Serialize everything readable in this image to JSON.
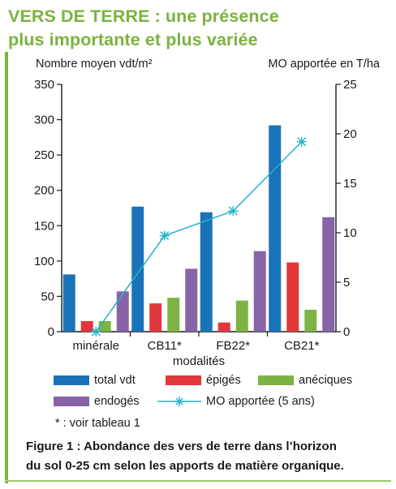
{
  "header": {
    "title_line1": "VERS DE TERRE : une présence",
    "title_line2": "plus importante et plus variée"
  },
  "chart_data": {
    "type": "bar",
    "categories": [
      "minérale",
      "CB11*",
      "FB22*",
      "CB21*"
    ],
    "xlabel": "modalités",
    "ylabel": "Nombre moyen vdt/m²",
    "y2label": "MO apportée en T/ha",
    "ylim": [
      0,
      350
    ],
    "y2lim": [
      0,
      25
    ],
    "yticks": [
      0,
      50,
      100,
      150,
      200,
      250,
      300,
      350
    ],
    "y2ticks": [
      0,
      5,
      10,
      15,
      20,
      25
    ],
    "series": [
      {
        "name": "total vdt",
        "color": "#1a73b8",
        "values": [
          81,
          177,
          169,
          292
        ]
      },
      {
        "name": "épigés",
        "color": "#e0383a",
        "values": [
          15,
          40,
          13,
          98
        ]
      },
      {
        "name": "anéciques",
        "color": "#7cb342",
        "values": [
          15,
          48,
          44,
          31
        ]
      },
      {
        "name": "endogés",
        "color": "#8764a8",
        "values": [
          57,
          89,
          114,
          162
        ]
      }
    ],
    "line_series": {
      "name": "MO apportée (5 ans)",
      "color": "#22b3c8",
      "axis": "right",
      "values": [
        0,
        9.7,
        12.2,
        19.2
      ]
    },
    "grid": false,
    "legend": "bottom"
  },
  "footnote": "* : voir tableau 1",
  "caption": {
    "line1": "Figure 1 : Abondance des vers de terre dans l’horizon",
    "line2": "du sol 0-25 cm selon les apports de matière organique."
  }
}
